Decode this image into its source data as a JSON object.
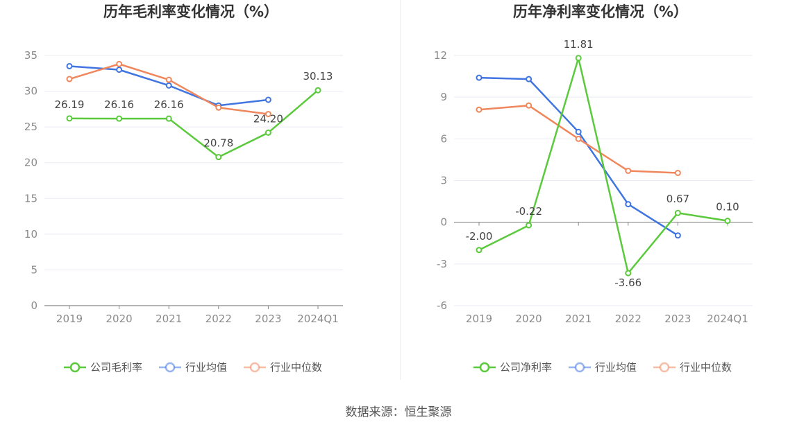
{
  "chart_data": [
    {
      "type": "line",
      "title": "历年毛利率变化情况（%）",
      "categories": [
        "2019",
        "2020",
        "2021",
        "2022",
        "2023",
        "2024Q1"
      ],
      "yticks": [
        "0",
        "5",
        "10",
        "15",
        "20",
        "25",
        "30",
        "35"
      ],
      "ylim": [
        0,
        35
      ],
      "grid": true,
      "legend_position": "bottom",
      "series": [
        {
          "name": "公司毛利率",
          "color": "#5ac93b",
          "values": [
            26.19,
            26.16,
            26.16,
            20.78,
            24.2,
            30.13
          ],
          "labels": [
            "26.19",
            "26.16",
            "26.16",
            "20.78",
            "24.20",
            "30.13"
          ]
        },
        {
          "name": "行业均值",
          "color": "#3f74e1",
          "values": [
            33.5,
            33.0,
            30.8,
            28.0,
            28.8,
            null
          ]
        },
        {
          "name": "行业中位数",
          "color": "#f0875c",
          "values": [
            31.7,
            33.8,
            31.6,
            27.7,
            26.8,
            null
          ]
        }
      ]
    },
    {
      "type": "line",
      "title": "历年净利率变化情况（%）",
      "categories": [
        "2019",
        "2020",
        "2021",
        "2022",
        "2023",
        "2024Q1"
      ],
      "yticks": [
        "-6",
        "-3",
        "0",
        "3",
        "6",
        "9",
        "12"
      ],
      "ylim": [
        -6,
        12
      ],
      "grid": true,
      "legend_position": "bottom",
      "series": [
        {
          "name": "公司净利率",
          "color": "#5ac93b",
          "values": [
            -2.0,
            -0.22,
            11.81,
            -3.66,
            0.67,
            0.1
          ],
          "labels": [
            "-2.00",
            "-0.22",
            "11.81",
            "-3.66",
            "0.67",
            "0.10"
          ]
        },
        {
          "name": "行业均值",
          "color": "#3f74e1",
          "values": [
            10.4,
            10.3,
            6.5,
            1.3,
            -0.95,
            null
          ]
        },
        {
          "name": "行业中位数",
          "color": "#f0875c",
          "values": [
            8.1,
            8.4,
            6.0,
            3.7,
            3.55,
            null
          ]
        }
      ]
    }
  ],
  "source_text": "数据来源：恒生聚源"
}
